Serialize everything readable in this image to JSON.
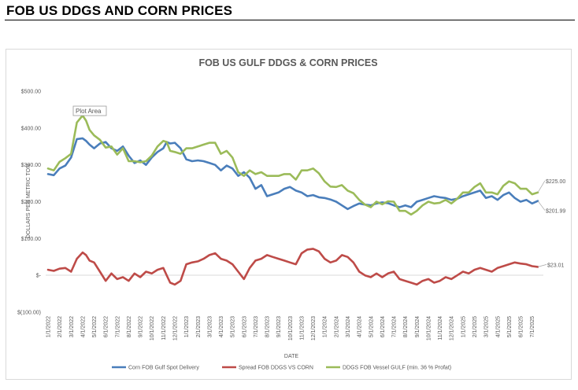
{
  "page": {
    "heading": "FOB US DDGS AND CORN PRICES"
  },
  "tooltip": "Plot Area",
  "chart_data": {
    "type": "line",
    "title": "FOB US GULF DDGS & CORN PRICES",
    "xlabel": "DATE",
    "ylabel": "DOLLARS PER METRIC TON",
    "ylim": [
      -100,
      500
    ],
    "yticks": [
      500,
      400,
      300,
      200,
      100,
      0,
      -100
    ],
    "ytick_labels": [
      "$500.00",
      "$400.00",
      "$300.00",
      "$200.00",
      "$100.00",
      "$-",
      "$(100.00)"
    ],
    "x_tick_labels": [
      "1/1/2022",
      "2/1/2022",
      "3/1/2022",
      "4/1/2022",
      "5/1/2022",
      "6/1/2022",
      "7/1/2022",
      "8/1/2022",
      "9/1/2022",
      "10/1/2022",
      "11/1/2022",
      "12/1/2022",
      "1/1/2023",
      "2/1/2023",
      "3/1/2023",
      "4/1/2023",
      "5/1/2023",
      "6/1/2023",
      "7/1/2023",
      "8/1/2023",
      "9/1/2023",
      "10/1/2023",
      "11/1/2023",
      "12/1/2023",
      "1/1/2024",
      "2/1/2024",
      "3/1/2024",
      "4/1/2024",
      "5/1/2024",
      "6/1/2024",
      "7/1/2024",
      "8/1/2024",
      "9/1/2024",
      "10/1/2024",
      "11/1/2024",
      "12/1/2024",
      "1/1/2025",
      "2/1/2025",
      "3/1/2025",
      "4/1/2025",
      "5/1/2025",
      "6/1/2025",
      "7/1/2025"
    ],
    "grid": false,
    "legend": "bottom",
    "series": [
      {
        "name": "Corn FOB Gulf Spot Delivery",
        "color": "#4a7ebb",
        "end_label": "$201.99",
        "x": [
          0,
          0.5,
          1,
          1.5,
          2,
          2.5,
          3,
          3.3,
          3.6,
          4,
          4.5,
          5,
          5.5,
          6,
          6.5,
          7,
          7.5,
          8,
          8.5,
          9,
          9.5,
          10,
          10.3,
          10.6,
          11,
          11.5,
          12,
          12.5,
          13,
          13.5,
          14,
          14.5,
          15,
          15.5,
          16,
          16.5,
          17,
          17.5,
          18,
          18.5,
          19,
          19.5,
          20,
          20.5,
          21,
          21.5,
          22,
          22.5,
          23,
          23.5,
          24,
          24.5,
          25,
          25.5,
          26,
          26.5,
          27,
          27.5,
          28,
          28.5,
          29,
          29.5,
          30,
          30.5,
          31,
          31.5,
          32,
          32.5,
          33,
          33.5,
          34,
          34.5,
          35,
          35.5,
          36,
          36.5,
          37,
          37.5,
          38,
          38.5,
          39,
          39.5,
          40,
          40.5,
          41,
          41.5,
          42,
          42.5
        ],
        "y": [
          275,
          272,
          290,
          298,
          320,
          370,
          372,
          365,
          355,
          345,
          358,
          362,
          345,
          338,
          350,
          325,
          305,
          312,
          300,
          320,
          335,
          345,
          362,
          358,
          360,
          345,
          315,
          310,
          312,
          310,
          305,
          300,
          285,
          298,
          290,
          270,
          280,
          265,
          235,
          245,
          215,
          220,
          225,
          235,
          240,
          230,
          225,
          215,
          218,
          212,
          210,
          206,
          200,
          190,
          180,
          188,
          195,
          192,
          190,
          195,
          198,
          196,
          190,
          185,
          190,
          185,
          200,
          205,
          210,
          215,
          212,
          210,
          205,
          208,
          215,
          220,
          225,
          230,
          210,
          215,
          205,
          218,
          225,
          210,
          200,
          205,
          195,
          201.99
        ]
      },
      {
        "name": "Spread FOB DDGS VS CORN",
        "color": "#be4b48",
        "end_label": "$23.01",
        "x": [
          0,
          0.5,
          1,
          1.5,
          2,
          2.5,
          3,
          3.3,
          3.6,
          4,
          4.5,
          5,
          5.5,
          6,
          6.5,
          7,
          7.5,
          8,
          8.5,
          9,
          9.5,
          10,
          10.3,
          10.6,
          11,
          11.5,
          12,
          12.5,
          13,
          13.5,
          14,
          14.5,
          15,
          15.5,
          16,
          16.5,
          17,
          17.5,
          18,
          18.5,
          19,
          19.5,
          20,
          20.5,
          21,
          21.5,
          22,
          22.5,
          23,
          23.5,
          24,
          24.5,
          25,
          25.5,
          26,
          26.5,
          27,
          27.5,
          28,
          28.5,
          29,
          29.5,
          30,
          30.5,
          31,
          31.5,
          32,
          32.5,
          33,
          33.5,
          34,
          34.5,
          35,
          35.5,
          36,
          36.5,
          37,
          37.5,
          38,
          38.5,
          39,
          39.5,
          40,
          40.5,
          41,
          41.5,
          42,
          42.5
        ],
        "y": [
          15,
          12,
          18,
          20,
          10,
          45,
          62,
          55,
          40,
          35,
          10,
          -15,
          5,
          -10,
          -5,
          -15,
          5,
          -5,
          10,
          5,
          15,
          20,
          0,
          -20,
          -25,
          -15,
          30,
          35,
          38,
          45,
          55,
          60,
          45,
          40,
          30,
          10,
          -10,
          20,
          40,
          45,
          55,
          50,
          45,
          40,
          35,
          30,
          60,
          70,
          72,
          65,
          45,
          35,
          40,
          55,
          50,
          35,
          10,
          0,
          -5,
          5,
          -5,
          5,
          10,
          -10,
          -15,
          -20,
          -25,
          -15,
          -10,
          -20,
          -15,
          -5,
          -10,
          0,
          10,
          5,
          15,
          20,
          15,
          10,
          20,
          25,
          30,
          35,
          32,
          30,
          25,
          23.01
        ]
      },
      {
        "name": "DDGS FOB Vessel GULF  (min. 36 % Profat)",
        "color": "#9bbb59",
        "end_label": "$225.00",
        "x": [
          0,
          0.5,
          1,
          1.5,
          2,
          2.5,
          3,
          3.3,
          3.6,
          4,
          4.5,
          5,
          5.5,
          6,
          6.5,
          7,
          7.5,
          8,
          8.5,
          9,
          9.5,
          10,
          10.3,
          10.6,
          11,
          11.5,
          12,
          12.5,
          13,
          13.5,
          14,
          14.5,
          15,
          15.5,
          16,
          16.5,
          17,
          17.5,
          18,
          18.5,
          19,
          19.5,
          20,
          20.5,
          21,
          21.5,
          22,
          22.5,
          23,
          23.5,
          24,
          24.5,
          25,
          25.5,
          26,
          26.5,
          27,
          27.5,
          28,
          28.5,
          29,
          29.5,
          30,
          30.5,
          31,
          31.5,
          32,
          32.5,
          33,
          33.5,
          34,
          34.5,
          35,
          35.5,
          36,
          36.5,
          37,
          37.5,
          38,
          38.5,
          39,
          39.5,
          40,
          40.5,
          41,
          41.5,
          42,
          42.5
        ],
        "y": [
          290,
          285,
          308,
          318,
          330,
          415,
          434,
          420,
          395,
          380,
          368,
          347,
          350,
          328,
          345,
          310,
          310,
          307,
          310,
          325,
          350,
          365,
          362,
          338,
          335,
          330,
          345,
          345,
          350,
          355,
          360,
          360,
          330,
          338,
          320,
          280,
          270,
          285,
          275,
          280,
          270,
          270,
          270,
          275,
          275,
          260,
          285,
          285,
          290,
          277,
          255,
          241,
          240,
          245,
          230,
          223,
          205,
          192,
          185,
          200,
          193,
          201,
          200,
          175,
          175,
          165,
          175,
          190,
          200,
          195,
          197,
          205,
          195,
          208,
          225,
          225,
          240,
          250,
          225,
          225,
          220,
          243,
          255,
          250,
          235,
          235,
          220,
          225
        ]
      }
    ]
  }
}
